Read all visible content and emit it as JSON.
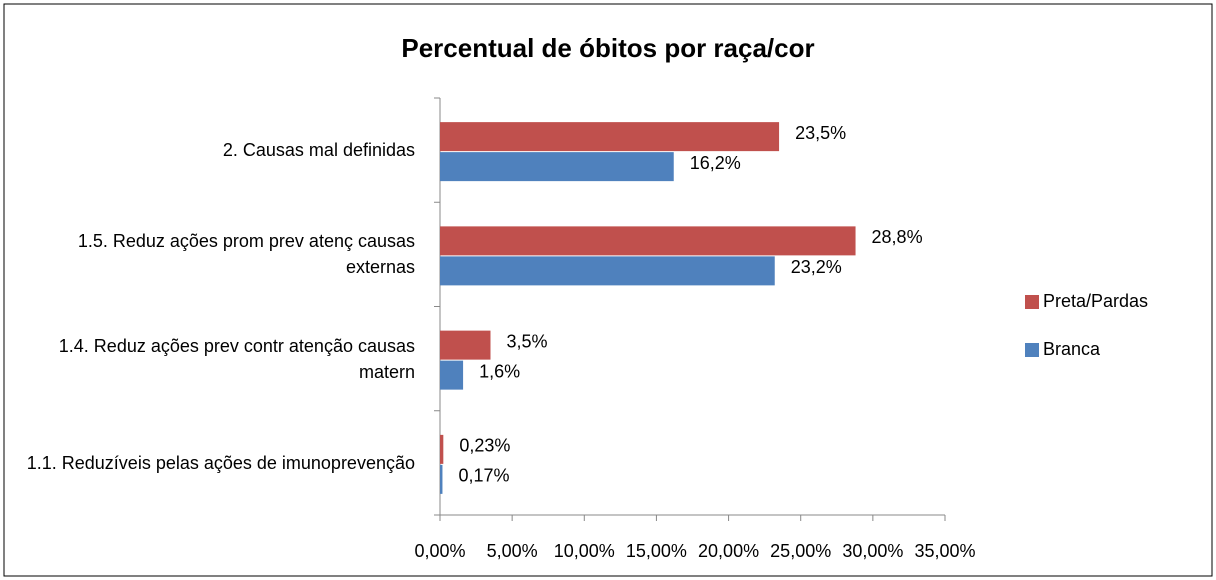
{
  "chart_data": {
    "type": "hbar",
    "title": "Percentual de óbitos por raça/cor",
    "categories": [
      "2. Causas mal definidas",
      "1.5. Reduz ações prom prev atenç causas externas",
      "1.4. Reduz ações prev contr atenção causas matern",
      "1.1. Reduzíveis pelas ações de imunoprevenção"
    ],
    "series": [
      {
        "name": "Preta/Pardas",
        "color": "#c0504d",
        "values": [
          23.5,
          28.8,
          3.5,
          0.23
        ],
        "value_labels": [
          "23,5%",
          "28,8%",
          "3,5%",
          "0,23%"
        ]
      },
      {
        "name": "Branca",
        "color": "#4f81bd",
        "values": [
          16.2,
          23.2,
          1.6,
          0.17
        ],
        "value_labels": [
          "16,2%",
          "23,2%",
          "1,6%",
          "0,17%"
        ]
      }
    ],
    "xlim": [
      0,
      35
    ],
    "xticks": [
      {
        "value": 0,
        "label": "0,00%"
      },
      {
        "value": 5,
        "label": "5,00%"
      },
      {
        "value": 10,
        "label": "10,00%"
      },
      {
        "value": 15,
        "label": "15,00%"
      },
      {
        "value": 20,
        "label": "20,00%"
      },
      {
        "value": 25,
        "label": "25,00%"
      },
      {
        "value": 30,
        "label": "30,00%"
      },
      {
        "value": 35,
        "label": "35,00%"
      }
    ],
    "legend": "right",
    "grid": false
  }
}
